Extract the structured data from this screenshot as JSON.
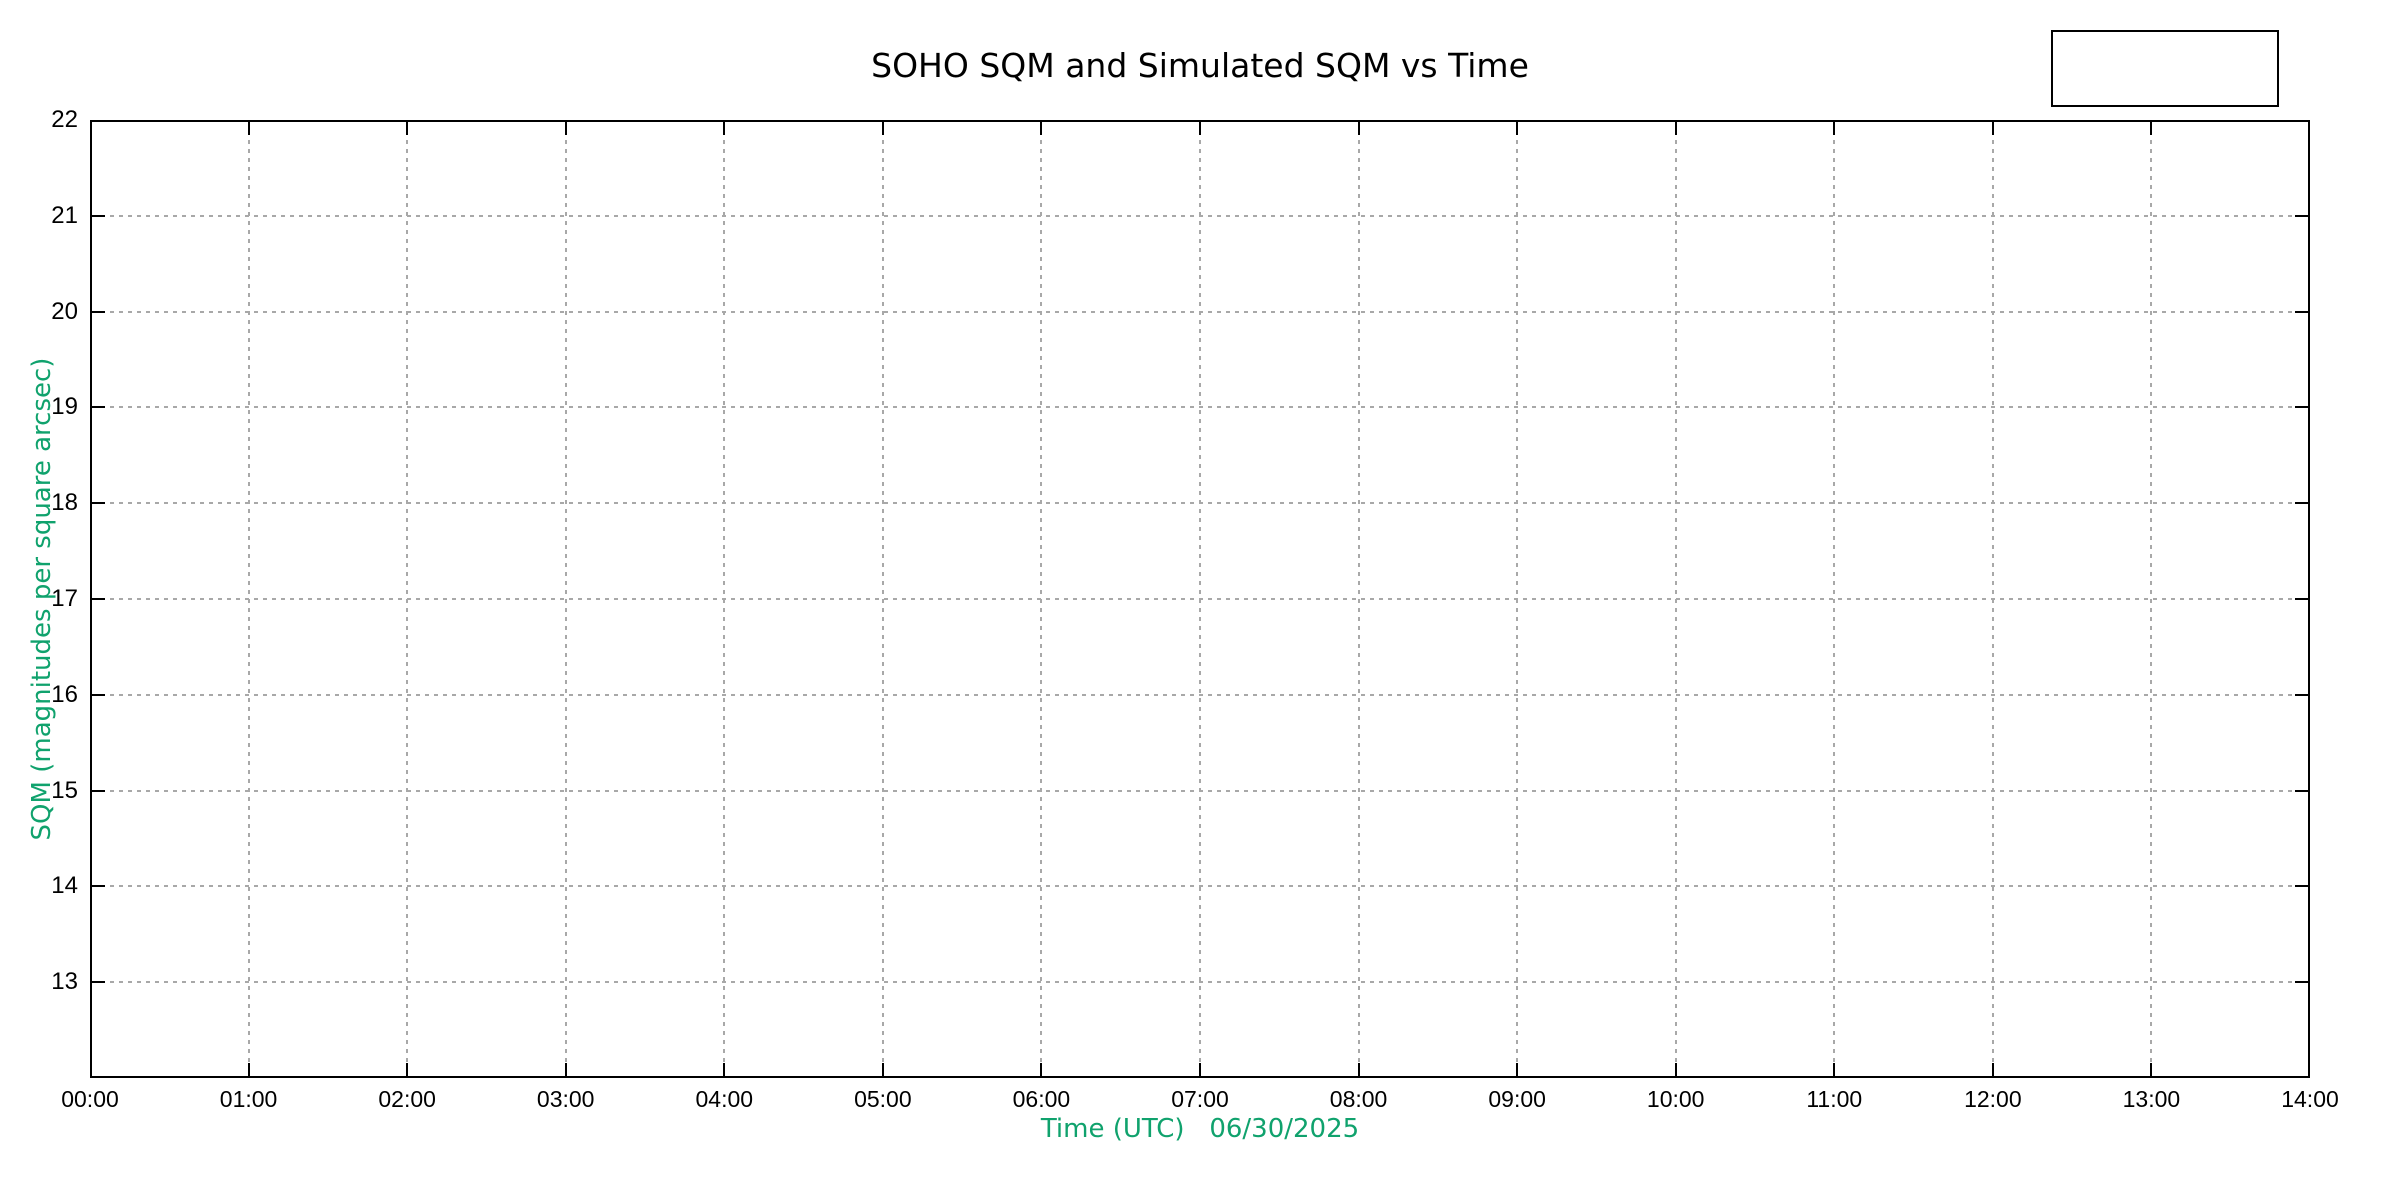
{
  "chart_data": {
    "type": "line",
    "title": "SOHO SQM and Simulated SQM vs Time",
    "xlabel": "Time (UTC)   06/30/2025",
    "ylabel": "SQM (magnitudes per square arcsec)",
    "x_tick_labels": [
      "00:00",
      "01:00",
      "02:00",
      "03:00",
      "04:00",
      "05:00",
      "06:00",
      "07:00",
      "08:00",
      "09:00",
      "10:00",
      "11:00",
      "12:00",
      "13:00",
      "14:00"
    ],
    "y_tick_values": [
      13,
      14,
      15,
      16,
      17,
      18,
      19,
      20,
      21,
      22
    ],
    "xlim": [
      "00:00",
      "14:00"
    ],
    "ylim": [
      12,
      22
    ],
    "grid": true,
    "legend": {
      "visible": true,
      "position": "top-right",
      "entries": []
    },
    "series": [],
    "colors": {
      "title": "#000000",
      "axis": "#000000",
      "tick_labels": "#000000",
      "axis_label_green": "#10a26d",
      "grid": "#a8a8a8",
      "background": "#ffffff"
    }
  }
}
